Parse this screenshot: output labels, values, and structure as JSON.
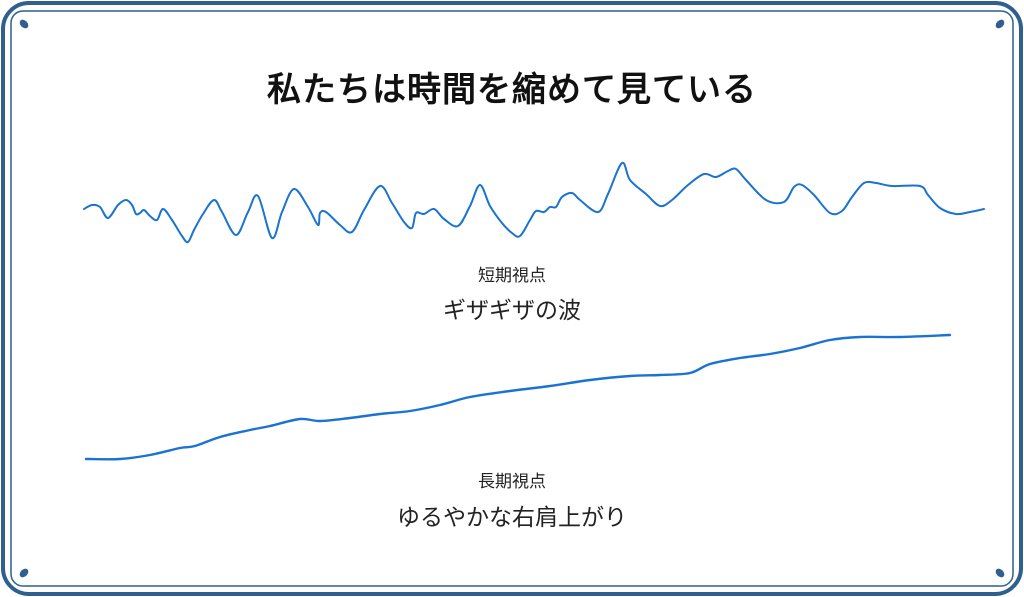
{
  "title": "私たちは時間を縮めて見ている",
  "short_term": {
    "label": "短期視点",
    "caption": "ギザギザの波"
  },
  "long_term": {
    "label": "長期視点",
    "caption": "ゆるやかな右肩上がり"
  },
  "colors": {
    "frame": "#2f5f8f",
    "line": "#1a73d0",
    "text": "#222222"
  }
}
